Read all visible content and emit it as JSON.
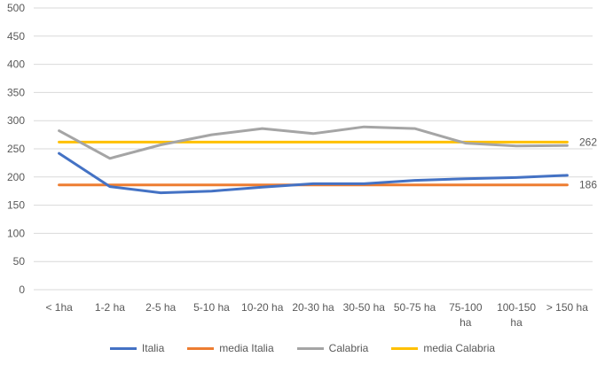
{
  "chart_data": {
    "type": "line",
    "title": "",
    "xlabel": "",
    "ylabel": "",
    "ylim": [
      0,
      500
    ],
    "yticks": [
      0,
      50,
      100,
      150,
      200,
      250,
      300,
      350,
      400,
      450,
      500
    ],
    "grid": true,
    "legend_position": "bottom",
    "categories": [
      "< 1ha",
      "1-2 ha",
      "2-5 ha",
      "5-10 ha",
      "10-20 ha",
      "20-30 ha",
      "30-50 ha",
      "50-75 ha",
      "75-100 ha",
      "100-150 ha",
      "> 150 ha"
    ],
    "category_lines": [
      [
        "< 1ha"
      ],
      [
        "1-2 ha"
      ],
      [
        "2-5 ha"
      ],
      [
        "5-10 ha"
      ],
      [
        "10-20 ha"
      ],
      [
        "20-30 ha"
      ],
      [
        "30-50 ha"
      ],
      [
        "50-75 ha"
      ],
      [
        "75-100",
        "ha"
      ],
      [
        "100-150",
        "ha"
      ],
      [
        "> 150 ha"
      ]
    ],
    "series": [
      {
        "name": "Italia",
        "color": "#4472c4",
        "values": [
          242,
          183,
          172,
          175,
          182,
          188,
          188,
          194,
          197,
          199,
          203
        ]
      },
      {
        "name": "media Italia",
        "color": "#ed7d31",
        "values": [
          186,
          186,
          186,
          186,
          186,
          186,
          186,
          186,
          186,
          186,
          186
        ],
        "end_label": "186"
      },
      {
        "name": "Calabria",
        "color": "#a5a5a5",
        "values": [
          282,
          233,
          257,
          275,
          286,
          277,
          289,
          286,
          260,
          255,
          256
        ]
      },
      {
        "name": "media Calabria",
        "color": "#ffc000",
        "values": [
          262,
          262,
          262,
          262,
          262,
          262,
          262,
          262,
          262,
          262,
          262
        ],
        "end_label": "262"
      }
    ]
  }
}
